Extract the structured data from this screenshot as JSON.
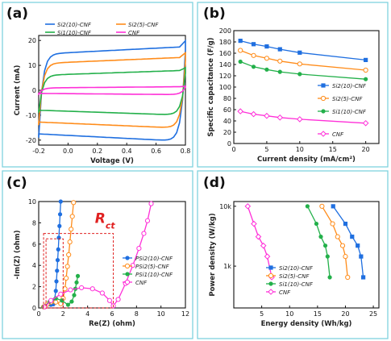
{
  "chart_data": [
    {
      "panel": "(a)",
      "type": "line",
      "xlabel": "Voltage (V)",
      "ylabel": "Current (mA)",
      "xlim": [
        -0.2,
        0.8
      ],
      "ylim": [
        -22,
        22
      ],
      "xticks": [
        "-0.2",
        "0.0",
        "0.2",
        "0.4",
        "0.6",
        "0.8"
      ],
      "yticks": [
        "-20",
        "-10",
        "0",
        "10",
        "20"
      ],
      "legend": "top",
      "series": [
        {
          "name": "Si2(10)-CNF",
          "color": "#1f6fe0",
          "marker": "line",
          "upper": 16,
          "lower": -19,
          "slope": 3
        },
        {
          "name": "Si2(5)-CNF",
          "color": "#ff8c1a",
          "marker": "line",
          "upper": 12,
          "lower": -14,
          "slope": 2.5
        },
        {
          "name": "Si1(10)-CNF",
          "color": "#23b04a",
          "marker": "line",
          "upper": 7,
          "lower": -9,
          "slope": 2
        },
        {
          "name": "CNF",
          "color": "#ff30d8",
          "marker": "line",
          "upper": 1.2,
          "lower": -1.5,
          "slope": 0.5
        }
      ]
    },
    {
      "panel": "(b)",
      "type": "line",
      "xlabel": "Current density (mA/cm²)",
      "ylabel": "Specific capacitance (F/g)",
      "xlim": [
        0,
        22
      ],
      "ylim": [
        0,
        200
      ],
      "xticks": [
        "0",
        "5",
        "10",
        "15",
        "20"
      ],
      "yticks": [
        "0",
        "20",
        "40",
        "60",
        "80",
        "100",
        "120",
        "140",
        "160",
        "180",
        "200"
      ],
      "legend": "right",
      "x": [
        1,
        3,
        5,
        7,
        10,
        20
      ],
      "series": [
        {
          "name": "Si2(10)-CNF",
          "color": "#1f6fe0",
          "marker": "square",
          "values": [
            182,
            176,
            172,
            167,
            161,
            148
          ]
        },
        {
          "name": "Si2(5)-CNF",
          "color": "#ff8c1a",
          "marker": "open-circle",
          "values": [
            165,
            156,
            151,
            146,
            141,
            130
          ]
        },
        {
          "name": "Si1(10)-CNF",
          "color": "#23b04a",
          "marker": "circle",
          "values": [
            145,
            136,
            131,
            127,
            123,
            114
          ]
        },
        {
          "name": "CNF",
          "color": "#ff30d8",
          "marker": "open-diamond",
          "values": [
            57,
            52,
            49,
            46,
            43,
            36
          ]
        }
      ]
    },
    {
      "panel": "(c)",
      "type": "scatter",
      "xlabel": "Re(Z) (ohm)",
      "ylabel": "-Im(Z) (ohm)",
      "xlim": [
        0,
        12
      ],
      "ylim": [
        0,
        10
      ],
      "xticks": [
        "0",
        "2",
        "4",
        "6",
        "8",
        "10",
        "12"
      ],
      "yticks": [
        "0",
        "2",
        "4",
        "6",
        "8",
        "10"
      ],
      "annotation": "Rct",
      "legend": "bottom-right",
      "series": [
        {
          "name": "PSi2(10)-CNF",
          "color": "#1f6fe0",
          "marker": "circle",
          "x": [
            0.4,
            0.6,
            0.8,
            1.0,
            1.2,
            1.3,
            1.4,
            1.45,
            1.5,
            1.55,
            1.6,
            1.65,
            1.7,
            1.75,
            1.8
          ],
          "y": [
            0.1,
            0.25,
            0.35,
            0.3,
            0.35,
            0.8,
            1.6,
            2.5,
            3.5,
            4.5,
            5.5,
            6.6,
            7.7,
            8.8,
            10
          ]
        },
        {
          "name": "PSi2(5)-CNF",
          "color": "#ff8c1a",
          "marker": "open-circle",
          "x": [
            0.4,
            0.7,
            1.0,
            1.4,
            1.8,
            2.0,
            2.15,
            2.25,
            2.35,
            2.45,
            2.55,
            2.65,
            2.75,
            2.85
          ],
          "y": [
            0.1,
            0.35,
            0.55,
            0.55,
            0.4,
            0.9,
            1.8,
            2.8,
            3.9,
            5.0,
            6.2,
            7.4,
            8.6,
            9.9
          ]
        },
        {
          "name": "PSi1(10)-CNF",
          "color": "#23b04a",
          "marker": "circle",
          "x": [
            0.4,
            0.9,
            1.4,
            1.9,
            2.4,
            2.7,
            2.9,
            3.0,
            3.1,
            3.2
          ],
          "y": [
            0.1,
            0.6,
            0.9,
            0.7,
            0.3,
            0.6,
            1.2,
            1.8,
            2.4,
            3.0
          ]
        },
        {
          "name": "CNF",
          "color": "#ff30d8",
          "marker": "open-circle",
          "x": [
            0.5,
            1.0,
            1.8,
            2.6,
            3.5,
            4.4,
            5.2,
            5.8,
            6.1,
            6.5,
            7.1,
            7.7,
            8.2,
            8.6,
            8.9,
            9.2
          ],
          "y": [
            0.1,
            0.7,
            1.3,
            1.7,
            1.9,
            1.8,
            1.4,
            0.7,
            0.2,
            0.8,
            2.3,
            4.0,
            5.6,
            7.0,
            8.2,
            9.8
          ]
        }
      ]
    },
    {
      "panel": "(d)",
      "type": "line",
      "xlabel": "Energy density (Wh/kg)",
      "ylabel": "Power density (W/kg)",
      "xlim": [
        0,
        26
      ],
      "ylim_log": [
        200,
        12000
      ],
      "xticks": [
        "5",
        "10",
        "15",
        "20",
        "25"
      ],
      "yticks": [
        "1k",
        "10k"
      ],
      "legend": "bottom-right",
      "series": [
        {
          "name": "Si2(10)-CNF",
          "color": "#1f6fe0",
          "marker": "square",
          "x": [
            17.8,
            20.0,
            21.2,
            22.2,
            22.8,
            23.2
          ],
          "y": [
            10000,
            5100,
            3100,
            2200,
            1450,
            650
          ]
        },
        {
          "name": "Si2(5)-CNF",
          "color": "#ff8c1a",
          "marker": "open-circle",
          "x": [
            15.8,
            17.7,
            18.6,
            19.5,
            20.0,
            20.4
          ],
          "y": [
            10000,
            5100,
            3100,
            2200,
            1450,
            650
          ]
        },
        {
          "name": "Si1(10)-CNF",
          "color": "#23b04a",
          "marker": "circle",
          "x": [
            13.2,
            14.8,
            15.6,
            16.4,
            16.8,
            17.2
          ],
          "y": [
            10000,
            5100,
            3100,
            2200,
            1450,
            650
          ]
        },
        {
          "name": "CNF",
          "color": "#ff30d8",
          "marker": "open-diamond",
          "x": [
            2.5,
            3.6,
            4.4,
            5.3,
            6.0,
            6.8
          ],
          "y": [
            10000,
            5100,
            3100,
            2200,
            1450,
            650
          ]
        }
      ]
    }
  ]
}
